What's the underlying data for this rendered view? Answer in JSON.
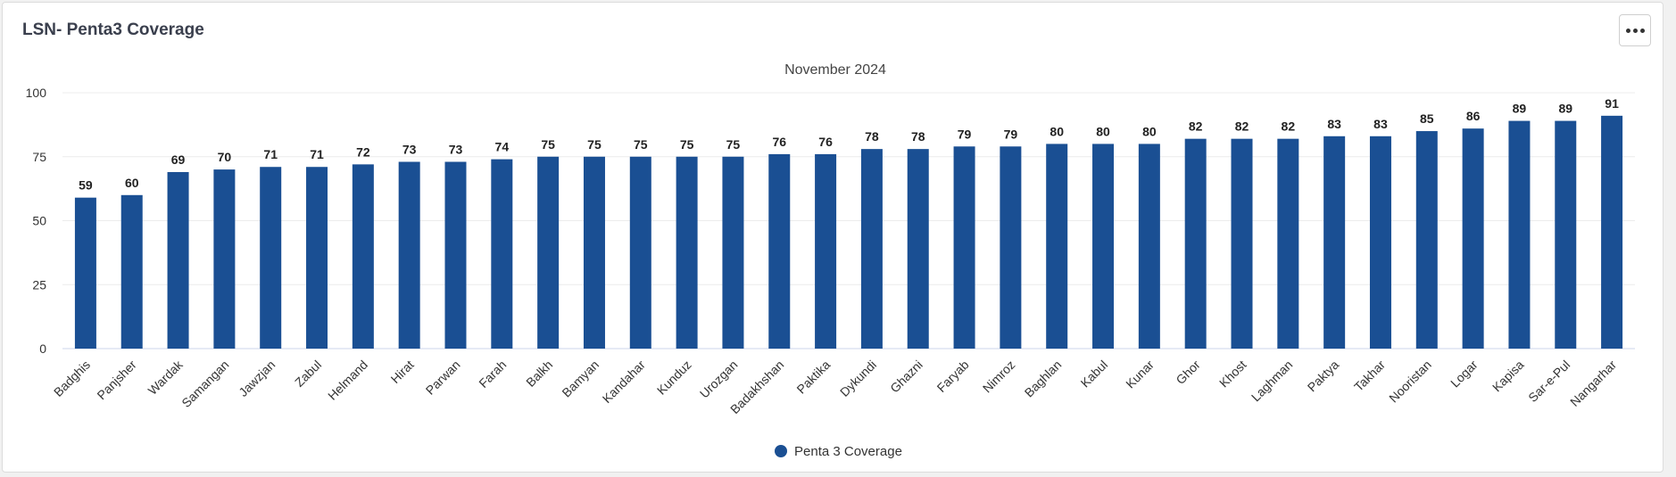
{
  "card": {
    "title": "LSN- Penta3 Coverage",
    "menu_icon": "ellipsis-icon"
  },
  "chart_data": {
    "type": "bar",
    "title": "",
    "subtitle": "November 2024",
    "xlabel": "",
    "ylabel": "",
    "ylim": [
      0,
      100
    ],
    "yticks": [
      0,
      25,
      50,
      75,
      100
    ],
    "grid": true,
    "legend_position": "bottom-center",
    "bar_color": "#1a4f93",
    "categories": [
      "Badghis",
      "Panjsher",
      "Wardak",
      "Samangan",
      "Jawzjan",
      "Zabul",
      "Helmand",
      "Hirat",
      "Parwan",
      "Farah",
      "Balkh",
      "Bamyan",
      "Kandahar",
      "Kunduz",
      "Urozgan",
      "Badakhshan",
      "Paktika",
      "Dykundi",
      "Ghazni",
      "Faryab",
      "Nimroz",
      "Baghlan",
      "Kabul",
      "Kunar",
      "Ghor",
      "Khost",
      "Laghman",
      "Paktya",
      "Takhar",
      "Nooristan",
      "Logar",
      "Kapisa",
      "Sar-e-Pul",
      "Nangarhar"
    ],
    "series": [
      {
        "name": "Penta 3 Coverage",
        "values": [
          59,
          60,
          69,
          70,
          71,
          71,
          72,
          73,
          73,
          74,
          75,
          75,
          75,
          75,
          75,
          76,
          76,
          78,
          78,
          79,
          79,
          80,
          80,
          80,
          82,
          82,
          82,
          83,
          83,
          85,
          86,
          89,
          89,
          91
        ]
      }
    ]
  }
}
